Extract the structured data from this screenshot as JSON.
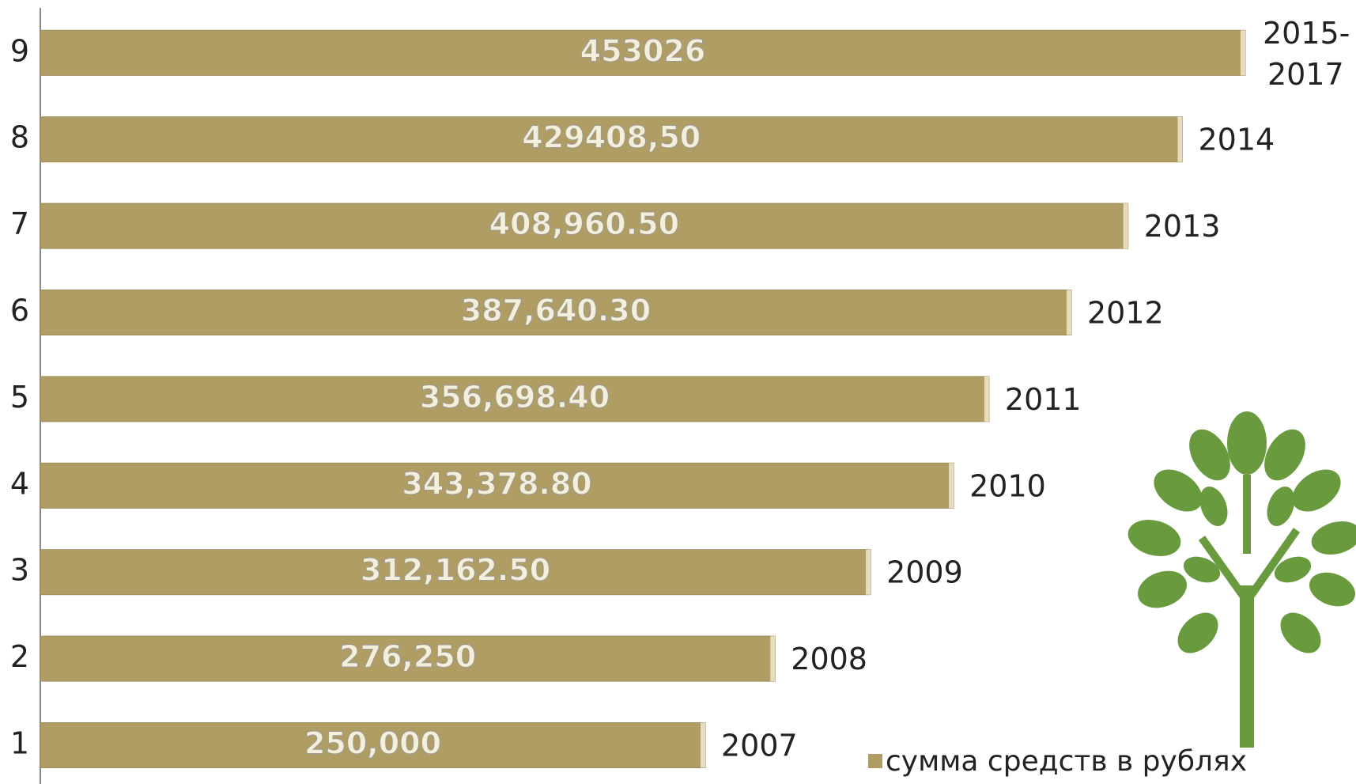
{
  "chart_data": {
    "type": "bar",
    "orientation": "horizontal",
    "categories": [
      "1",
      "2",
      "3",
      "4",
      "5",
      "6",
      "7",
      "8",
      "9"
    ],
    "series": [
      {
        "name": "сумма средств в рублях",
        "color": "#b09d64",
        "values": [
          250000,
          276250,
          312162.5,
          343378.8,
          356698.4,
          387640.3,
          408960.5,
          429408.5,
          453026
        ],
        "value_labels": [
          "250,000",
          "276,250",
          "312,162.50",
          "343,378.80",
          "356,698.40",
          "387,640.30",
          "408,960.50",
          "429408,50",
          "453026"
        ]
      }
    ],
    "bar_end_labels": [
      "2007",
      "2008",
      "2009",
      "2010",
      "2011",
      "2012",
      "2013",
      "2014",
      "2015-2017"
    ],
    "xlim": [
      0,
      500000
    ],
    "legend": "bottom-right"
  }
}
